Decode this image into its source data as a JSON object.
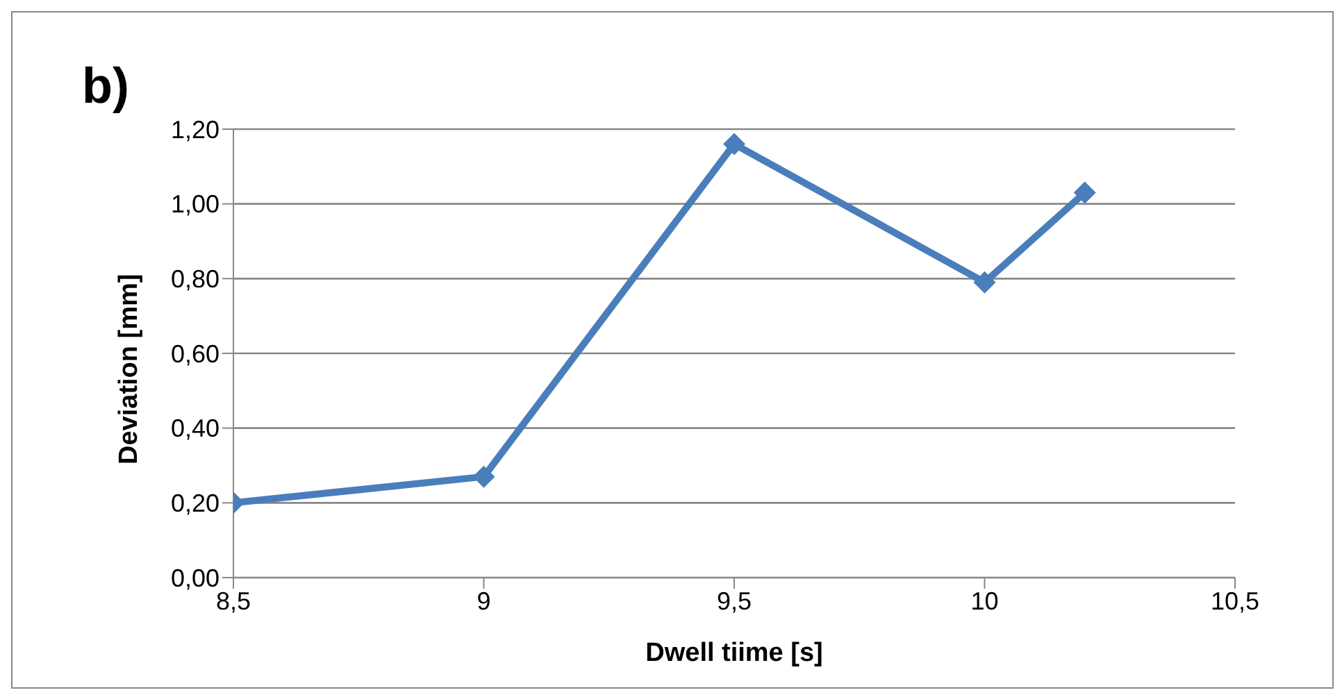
{
  "chart_data": {
    "type": "line",
    "title": "b)",
    "xlabel": "Dwell tiime [s]",
    "ylabel": "Deviation [mm]",
    "x": [
      8.5,
      9,
      9.5,
      10,
      10.2
    ],
    "series": [
      {
        "color": "#4a7ebb",
        "values": [
          0.2,
          0.27,
          1.16,
          0.79,
          1.03
        ]
      }
    ],
    "xlim": [
      8.5,
      10.5
    ],
    "xticks": [
      {
        "value": 8.5,
        "label": "8,5"
      },
      9,
      {
        "value": 9.5,
        "label": "9,5"
      },
      10,
      {
        "value": 10.5,
        "label": "10,5"
      }
    ],
    "ylim": [
      0,
      1.2
    ],
    "yticks": [
      {
        "value": 0,
        "label": "0,00"
      },
      {
        "value": 0.2,
        "label": "0,20"
      },
      {
        "value": 0.4,
        "label": "0,40"
      },
      {
        "value": 0.6,
        "label": "0,60"
      },
      {
        "value": 0.8,
        "label": "0,80"
      },
      {
        "value": 1,
        "label": "1,00"
      },
      {
        "value": 1.2,
        "label": "1,20"
      }
    ],
    "grid": "y",
    "marker": "diamond",
    "line_style": "solid",
    "legend": false
  }
}
